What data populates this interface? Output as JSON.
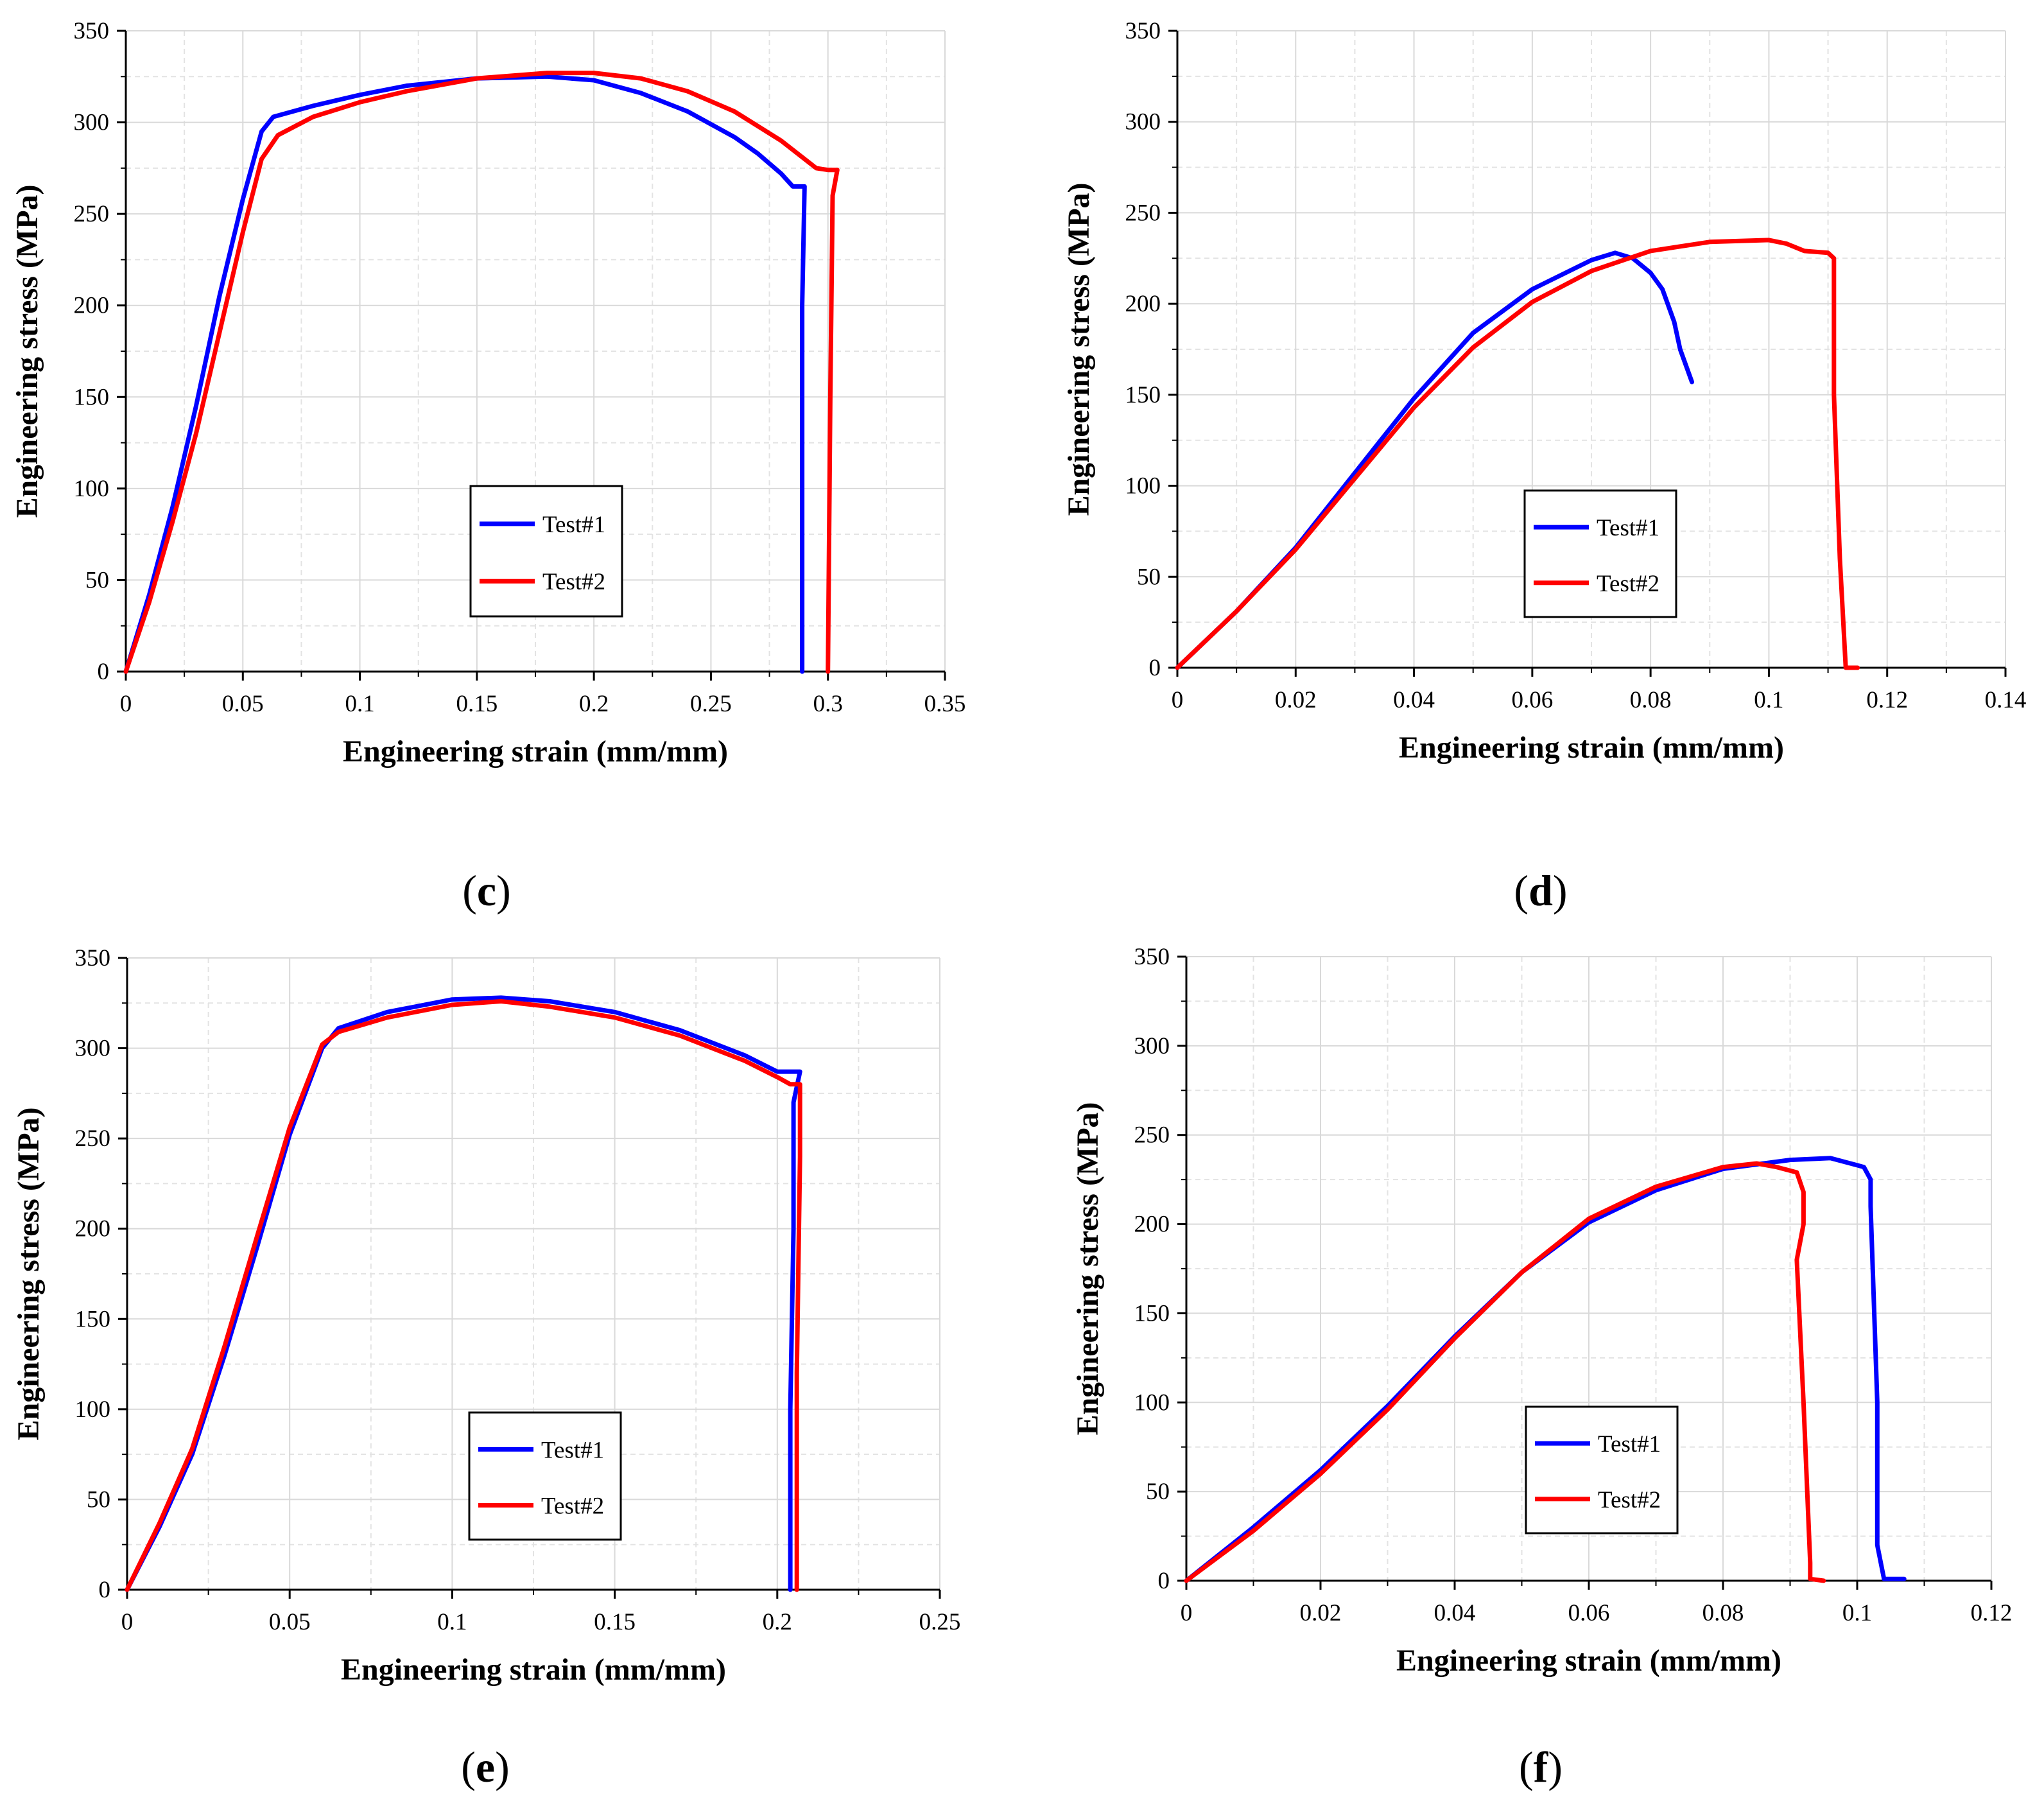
{
  "figure": {
    "colors": {
      "test1": "#0000ff",
      "test2": "#ff0000",
      "grid": "#d9d9d9",
      "axis": "#000000"
    }
  },
  "chart_data": [
    {
      "panel_label": "c",
      "type": "line",
      "xlabel": "Engineering  strain (mm/mm)",
      "ylabel": "Engineering  stress (MPa)",
      "xlim": [
        0,
        0.35
      ],
      "ylim": [
        0,
        350
      ],
      "xticks": [
        0,
        0.05,
        0.1,
        0.15,
        0.2,
        0.25,
        0.3,
        0.35
      ],
      "xtick_labels": [
        "0",
        "0.05",
        "0.1",
        "0.15",
        "0.2",
        "0.25",
        "0.3",
        "0.35"
      ],
      "yticks": [
        0,
        50,
        100,
        150,
        200,
        250,
        300,
        350
      ],
      "ytick_labels": [
        "0",
        "50",
        "100",
        "150",
        "200",
        "250",
        "300",
        "350"
      ],
      "grid": true,
      "legend_position": "bottom-center",
      "series": [
        {
          "name": "Test#1",
          "color": "#0000ff",
          "x": [
            0,
            0.01,
            0.02,
            0.03,
            0.04,
            0.05,
            0.058,
            0.063,
            0.08,
            0.1,
            0.12,
            0.15,
            0.18,
            0.2,
            0.22,
            0.24,
            0.26,
            0.27,
            0.28,
            0.285,
            0.288,
            0.29,
            0.289,
            0.289
          ],
          "y": [
            0,
            42,
            90,
            145,
            205,
            258,
            295,
            303,
            309,
            315,
            320,
            324,
            325,
            323,
            316,
            306,
            292,
            283,
            272,
            265,
            265,
            265,
            200,
            0
          ]
        },
        {
          "name": "Test#2",
          "color": "#ff0000",
          "x": [
            0,
            0.01,
            0.02,
            0.03,
            0.04,
            0.05,
            0.058,
            0.065,
            0.08,
            0.1,
            0.12,
            0.15,
            0.18,
            0.2,
            0.22,
            0.24,
            0.26,
            0.28,
            0.295,
            0.3,
            0.304,
            0.302,
            0.301,
            0.3
          ],
          "y": [
            0,
            38,
            82,
            130,
            185,
            240,
            280,
            293,
            303,
            311,
            317,
            324,
            327,
            327,
            324,
            317,
            306,
            290,
            275,
            274,
            274,
            260,
            150,
            0
          ]
        }
      ]
    },
    {
      "panel_label": "d",
      "type": "line",
      "xlabel": "Engineering  strain (mm/mm)",
      "ylabel": "Engineering  stress (MPa)",
      "xlim": [
        0,
        0.14
      ],
      "ylim": [
        0,
        350
      ],
      "xticks": [
        0,
        0.02,
        0.04,
        0.06,
        0.08,
        0.1,
        0.12,
        0.14
      ],
      "xtick_labels": [
        "0",
        "0.02",
        "0.04",
        "0.06",
        "0.08",
        "0.1",
        "0.12",
        "0.14"
      ],
      "yticks": [
        0,
        50,
        100,
        150,
        200,
        250,
        300,
        350
      ],
      "ytick_labels": [
        "0",
        "50",
        "100",
        "150",
        "200",
        "250",
        "300",
        "350"
      ],
      "grid": true,
      "legend_position": "bottom-center",
      "series": [
        {
          "name": "Test#1",
          "color": "#0000ff",
          "x": [
            0,
            0.01,
            0.02,
            0.03,
            0.04,
            0.05,
            0.06,
            0.07,
            0.074,
            0.077,
            0.08,
            0.082,
            0.084,
            0.085,
            0.087
          ],
          "y": [
            0,
            31,
            66,
            107,
            148,
            184,
            208,
            224,
            228,
            225,
            217,
            208,
            190,
            175,
            157
          ]
        },
        {
          "name": "Test#2",
          "color": "#ff0000",
          "x": [
            0,
            0.01,
            0.02,
            0.03,
            0.04,
            0.05,
            0.06,
            0.07,
            0.08,
            0.09,
            0.1,
            0.103,
            0.106,
            0.11,
            0.111,
            0.111,
            0.112,
            0.113,
            0.115
          ],
          "y": [
            0,
            31,
            65,
            104,
            143,
            176,
            201,
            218,
            229,
            234,
            235,
            233,
            229,
            228,
            225,
            150,
            60,
            0,
            0
          ]
        }
      ]
    },
    {
      "panel_label": "e",
      "type": "line",
      "xlabel": "Engineering  strain (mm/mm)",
      "ylabel": "Engineering  stress (MPa)",
      "xlim": [
        0,
        0.25
      ],
      "ylim": [
        0,
        350
      ],
      "xticks": [
        0,
        0.05,
        0.1,
        0.15,
        0.2,
        0.25
      ],
      "xtick_labels": [
        "0",
        "0.05",
        "0.1",
        "0.15",
        "0.2",
        "0.25"
      ],
      "yticks": [
        0,
        50,
        100,
        150,
        200,
        250,
        300,
        350
      ],
      "ytick_labels": [
        "0",
        "50",
        "100",
        "150",
        "200",
        "250",
        "300",
        "350"
      ],
      "grid": true,
      "legend_position": "bottom-center",
      "series": [
        {
          "name": "Test#1",
          "color": "#0000ff",
          "x": [
            0,
            0.01,
            0.02,
            0.03,
            0.04,
            0.05,
            0.06,
            0.065,
            0.08,
            0.1,
            0.115,
            0.13,
            0.15,
            0.17,
            0.19,
            0.2,
            0.203,
            0.207,
            0.205,
            0.205,
            0.204,
            0.204
          ],
          "y": [
            0,
            35,
            75,
            130,
            190,
            252,
            300,
            311,
            320,
            327,
            328,
            326,
            320,
            310,
            296,
            287,
            287,
            287,
            270,
            200,
            100,
            0
          ]
        },
        {
          "name": "Test#2",
          "color": "#ff0000",
          "x": [
            0,
            0.01,
            0.02,
            0.03,
            0.04,
            0.05,
            0.06,
            0.065,
            0.08,
            0.1,
            0.115,
            0.13,
            0.15,
            0.17,
            0.19,
            0.2,
            0.204,
            0.207,
            0.207,
            0.206,
            0.206
          ],
          "y": [
            0,
            37,
            78,
            135,
            196,
            256,
            302,
            309,
            317,
            324,
            326,
            323,
            317,
            307,
            293,
            284,
            280,
            280,
            240,
            120,
            0
          ]
        }
      ]
    },
    {
      "panel_label": "f",
      "type": "line",
      "xlabel": "Engineering  strain (mm/mm)",
      "ylabel": "Engineering  stress (MPa)",
      "xlim": [
        0,
        0.12
      ],
      "ylim": [
        0,
        350
      ],
      "xticks": [
        0,
        0.02,
        0.04,
        0.06,
        0.08,
        0.1,
        0.12
      ],
      "xtick_labels": [
        "0",
        "0.02",
        "0.04",
        "0.06",
        "0.08",
        "0.1",
        "0.12"
      ],
      "yticks": [
        0,
        50,
        100,
        150,
        200,
        250,
        300,
        350
      ],
      "ytick_labels": [
        "0",
        "50",
        "100",
        "150",
        "200",
        "250",
        "300",
        "350"
      ],
      "grid": true,
      "legend_position": "bottom-center",
      "series": [
        {
          "name": "Test#1",
          "color": "#0000ff",
          "x": [
            0,
            0.01,
            0.02,
            0.03,
            0.04,
            0.05,
            0.06,
            0.07,
            0.08,
            0.09,
            0.096,
            0.1,
            0.101,
            0.102,
            0.102,
            0.103,
            0.103,
            0.104,
            0.107
          ],
          "y": [
            0,
            30,
            62,
            98,
            137,
            173,
            201,
            219,
            231,
            236,
            237,
            233,
            232,
            225,
            210,
            100,
            20,
            1,
            1
          ]
        },
        {
          "name": "Test#2",
          "color": "#ff0000",
          "x": [
            0,
            0.01,
            0.02,
            0.03,
            0.04,
            0.05,
            0.06,
            0.07,
            0.08,
            0.085,
            0.088,
            0.091,
            0.092,
            0.092,
            0.091,
            0.092,
            0.093,
            0.093,
            0.095
          ],
          "y": [
            0,
            28,
            60,
            96,
            136,
            173,
            203,
            221,
            232,
            234,
            232,
            229,
            218,
            200,
            180,
            100,
            10,
            1,
            0
          ]
        }
      ]
    }
  ]
}
